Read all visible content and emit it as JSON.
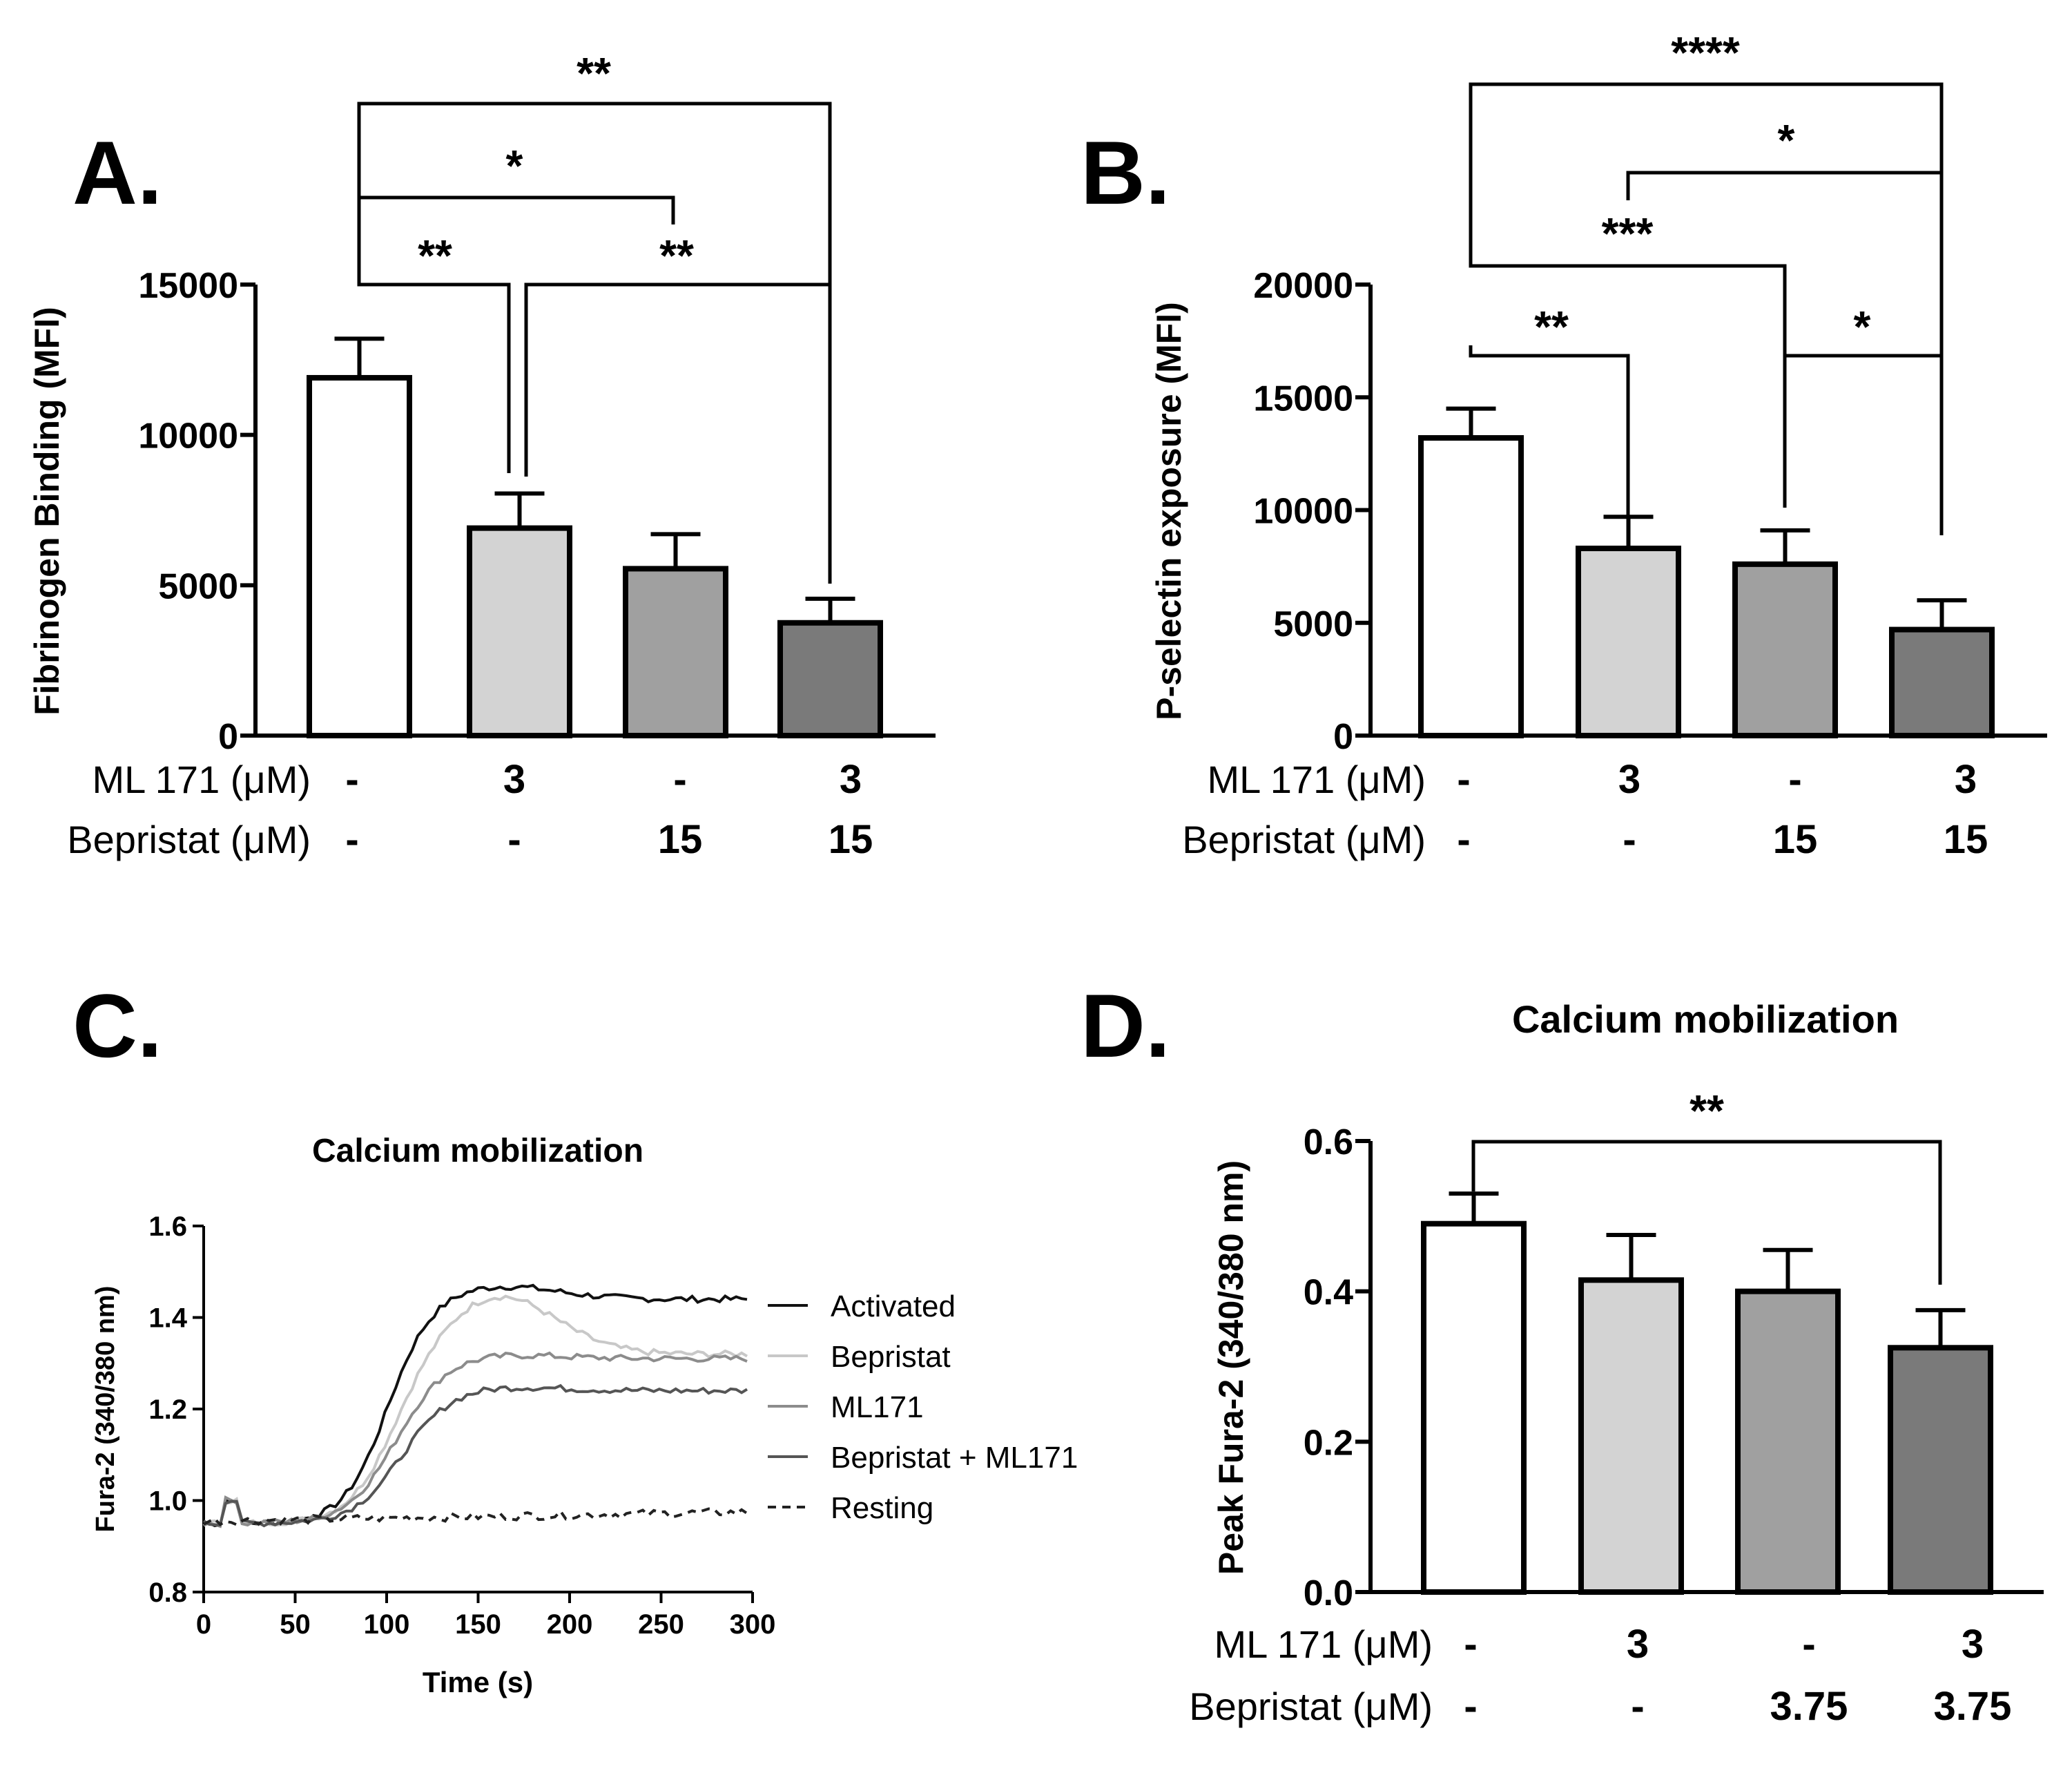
{
  "chart_data": [
    {
      "id": "A",
      "type": "bar",
      "panel_label": "A.",
      "ylabel": "Fibrinogen Binding (MFI)",
      "ylim": [
        0,
        15000
      ],
      "yticks": [
        "0",
        "5000",
        "10000",
        "15000"
      ],
      "values": [
        11900,
        6900,
        5550,
        3750
      ],
      "errors": [
        1300,
        1150,
        1150,
        800
      ],
      "colors": [
        "#ffffff",
        "#d3d3d3",
        "#a0a0a0",
        "#7a7a7a"
      ],
      "treatments": [
        {
          "label": "ML 171 (μM)",
          "values": [
            "-",
            "3",
            "-",
            "3"
          ]
        },
        {
          "label": "Bepristat (μM)",
          "values": [
            "-",
            "-",
            "15",
            "15"
          ]
        }
      ],
      "significance": [
        {
          "from": 0,
          "to": 1,
          "label": "**"
        },
        {
          "from": 0,
          "to": 2,
          "label": "*"
        },
        {
          "from": 0,
          "to": 3,
          "label": "**"
        },
        {
          "from": 1,
          "to": 3,
          "label": "**"
        }
      ]
    },
    {
      "id": "B",
      "type": "bar",
      "panel_label": "B.",
      "ylabel": "P-selectin exposure (MFI)",
      "ylim": [
        0,
        20000
      ],
      "yticks": [
        "0",
        "5000",
        "10000",
        "15000",
        "20000"
      ],
      "values": [
        13200,
        8300,
        7600,
        4700
      ],
      "errors": [
        1300,
        1400,
        1500,
        1300
      ],
      "colors": [
        "#ffffff",
        "#d3d3d3",
        "#a0a0a0",
        "#7a7a7a"
      ],
      "treatments": [
        {
          "label": "ML 171 (μM)",
          "values": [
            "-",
            "3",
            "-",
            "3"
          ]
        },
        {
          "label": "Bepristat (μM)",
          "values": [
            "-",
            "-",
            "15",
            "15"
          ]
        }
      ],
      "significance": [
        {
          "from": 0,
          "to": 1,
          "label": "**"
        },
        {
          "from": 0,
          "to": 2,
          "label": "***"
        },
        {
          "from": 2,
          "to": 3,
          "label": "*"
        },
        {
          "from": 1,
          "to": 3,
          "label": "*"
        },
        {
          "from": 0,
          "to": 3,
          "label": "****"
        }
      ]
    },
    {
      "id": "C",
      "type": "line",
      "panel_label": "C.",
      "title": "Calcium mobilization",
      "xlabel": "Time (s)",
      "ylabel": "Fura-2  (340/380 nm)",
      "xlim": [
        0,
        300
      ],
      "ylim": [
        0.8,
        1.6
      ],
      "xticks": [
        "0",
        "50",
        "100",
        "150",
        "200",
        "250",
        "300"
      ],
      "yticks": [
        "0.8",
        "1.0",
        "1.2",
        "1.4",
        "1.6"
      ],
      "series": [
        {
          "name": "Activated",
          "color": "#111111",
          "dashed": false,
          "plateau": 1.44,
          "peak": 1.47,
          "tmid": 100,
          "k": 0.085
        },
        {
          "name": "Bepristat",
          "color": "#c8c8c8",
          "dashed": false,
          "plateau": 1.32,
          "peak": 1.45,
          "tmid": 102,
          "k": 0.08
        },
        {
          "name": "ML171",
          "color": "#8c8c8c",
          "dashed": false,
          "plateau": 1.31,
          "peak": 1.32,
          "tmid": 105,
          "k": 0.075
        },
        {
          "name": "Bepristat + ML171",
          "color": "#555555",
          "dashed": false,
          "plateau": 1.24,
          "peak": 1.25,
          "tmid": 108,
          "k": 0.075
        },
        {
          "name": "Resting",
          "color": "#222222",
          "dashed": true,
          "plateau": 0.98,
          "peak": 0.98,
          "tmid": 0,
          "k": 0
        }
      ]
    },
    {
      "id": "D",
      "type": "bar",
      "panel_label": "D.",
      "title": "Calcium mobilization",
      "ylabel": "Peak Fura-2 (340/380 nm)",
      "ylim": [
        0,
        0.6
      ],
      "yticks": [
        "0.0",
        "0.2",
        "0.4",
        "0.6"
      ],
      "values": [
        0.49,
        0.415,
        0.4,
        0.325
      ],
      "errors": [
        0.04,
        0.06,
        0.055,
        0.05
      ],
      "colors": [
        "#ffffff",
        "#d3d3d3",
        "#a0a0a0",
        "#7a7a7a"
      ],
      "treatments": [
        {
          "label": "ML 171 (μM)",
          "values": [
            "-",
            "3",
            "-",
            "3"
          ]
        },
        {
          "label": "Bepristat (μM)",
          "values": [
            "-",
            "-",
            "3.75",
            "3.75"
          ]
        }
      ],
      "significance": [
        {
          "from": 0,
          "to": 3,
          "label": "**"
        }
      ]
    }
  ]
}
